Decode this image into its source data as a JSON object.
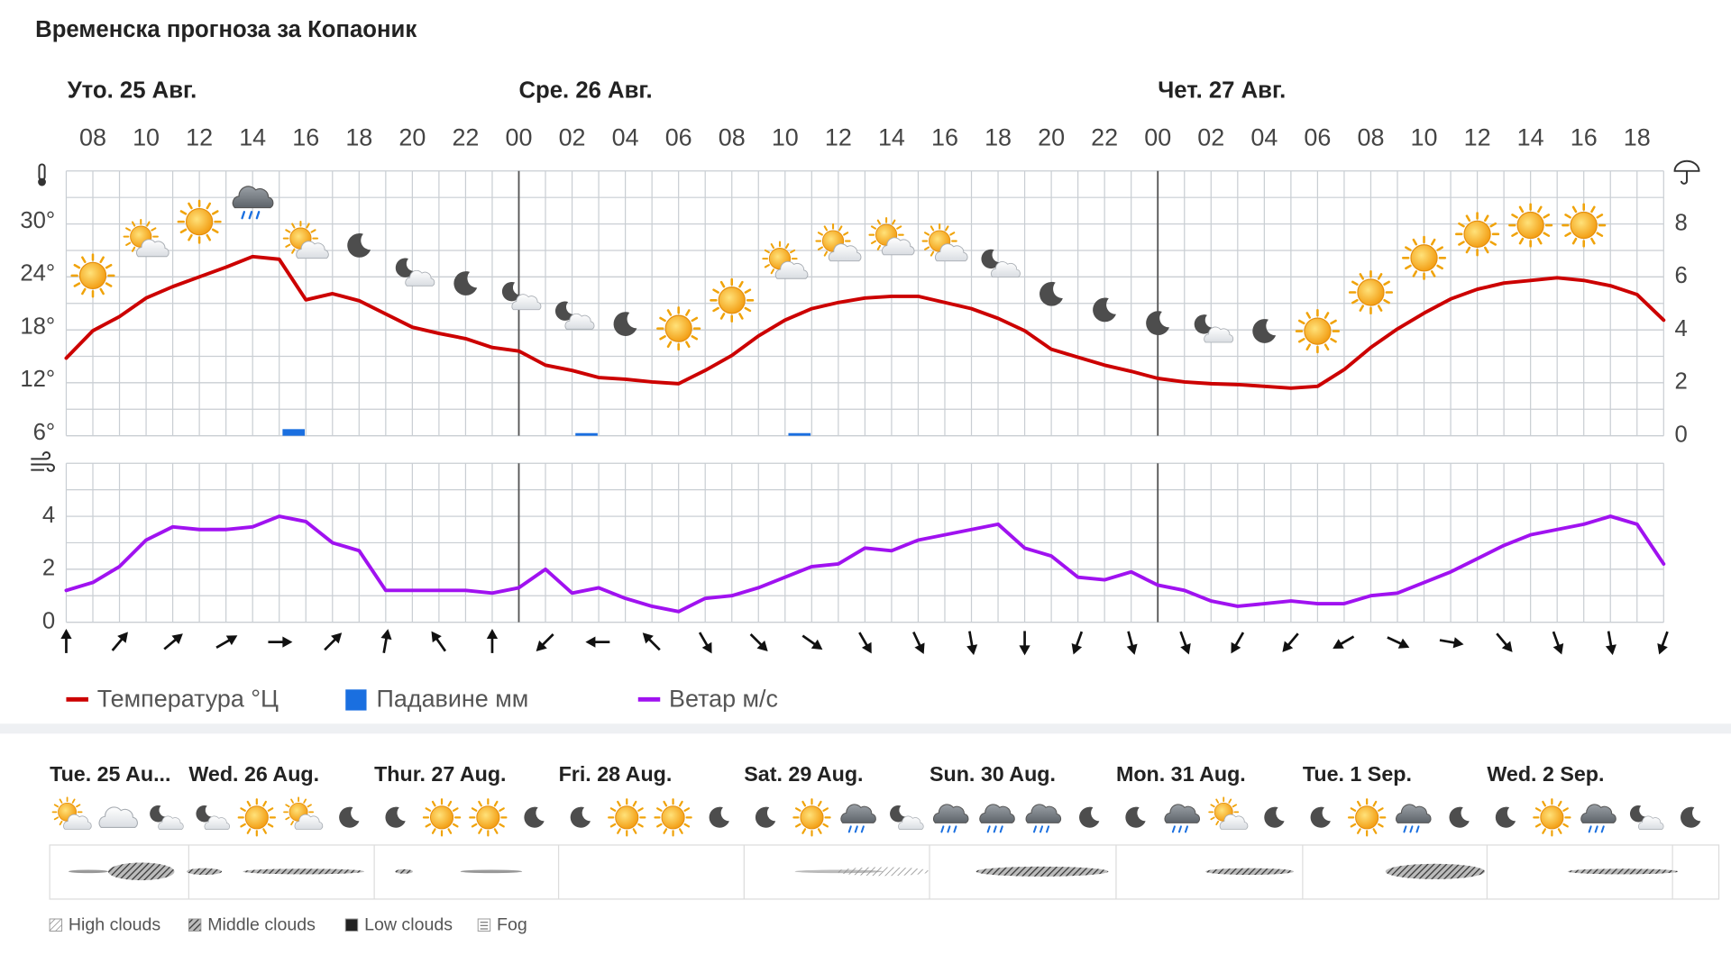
{
  "title": "Временска прогноза за Копаоник",
  "chart_data": [
    {
      "type": "line",
      "days": [
        "Уто. 25 Авг.",
        "Сре. 26 Авг.",
        "Чет. 27 Авг."
      ],
      "categories": [
        null,
        "08",
        null,
        "10",
        null,
        "12",
        null,
        "14",
        null,
        "16",
        null,
        "18",
        null,
        "20",
        null,
        "22",
        null,
        "00",
        null,
        "02",
        null,
        "04",
        null,
        "06",
        null,
        "08",
        null,
        "10",
        null,
        "12",
        null,
        "14",
        null,
        "16",
        null,
        "18",
        null,
        "20",
        null,
        "22",
        null,
        "00",
        null,
        "02",
        null,
        "04",
        null,
        "06",
        null,
        "08",
        null,
        "10",
        null,
        "12",
        null,
        "14",
        null,
        "16",
        null,
        "18",
        null
      ],
      "series": [
        {
          "name": "Температура °Ц",
          "type": "line",
          "color": "#cc0000",
          "values": [
            14.8,
            17.9,
            19.5,
            21.6,
            22.9,
            24,
            25.1,
            26.3,
            26,
            21.4,
            22.1,
            21.3,
            19.8,
            18.3,
            17.6,
            17,
            16,
            15.6,
            14,
            13.4,
            12.6,
            12.4,
            12.1,
            11.9,
            13.4,
            15.1,
            17.3,
            19.1,
            20.4,
            21.1,
            21.6,
            21.8,
            21.8,
            21.1,
            20.4,
            19.3,
            17.9,
            15.8,
            14.9,
            14,
            13.3,
            12.5,
            12.1,
            11.9,
            11.8,
            11.6,
            11.4,
            11.6,
            13.5,
            16,
            18.1,
            19.9,
            21.5,
            22.6,
            23.3,
            23.6,
            23.9,
            23.6,
            23,
            22,
            19.1
          ]
        },
        {
          "name": "Падавине мм",
          "type": "bar",
          "axis": "y2",
          "color": "#1a6fe0",
          "values": [
            0,
            0,
            0,
            0,
            0,
            0,
            0,
            0,
            0.25,
            0,
            0,
            0,
            0,
            0,
            0,
            0,
            0,
            0,
            0,
            0.1,
            0,
            0,
            0,
            0,
            0,
            0,
            0,
            0.1,
            0,
            0,
            0,
            0,
            0,
            0,
            0,
            0,
            0,
            0,
            0,
            0,
            0,
            0,
            0,
            0,
            0,
            0,
            0,
            0,
            0,
            0,
            0,
            0,
            0,
            0,
            0,
            0,
            0,
            0,
            0,
            0,
            0
          ]
        }
      ],
      "symbols": [
        null,
        "sun",
        null,
        "sun-cloud",
        null,
        "sun",
        null,
        "rain",
        null,
        "sun-cloud",
        null,
        "moon",
        null,
        "moon-cloud",
        null,
        "moon",
        null,
        "moon-cloud",
        null,
        "moon-cloud",
        null,
        "moon",
        null,
        "sun",
        null,
        "sun",
        null,
        "sun-cloud",
        null,
        "sun-cloud",
        null,
        "sun-cloud",
        null,
        "sun-cloud",
        null,
        "moon-cloud",
        null,
        "moon",
        null,
        "moon",
        null,
        "moon",
        null,
        "moon-cloud",
        null,
        "moon",
        null,
        "sun",
        null,
        "sun",
        null,
        "sun",
        null,
        "sun",
        null,
        "sun",
        null,
        "sun",
        null,
        null,
        null
      ],
      "ylim": [
        6,
        36
      ],
      "yticks": [
        {
          "value": 6,
          "label": "6°"
        },
        {
          "value": 12,
          "label": "12°"
        },
        {
          "value": 18,
          "label": "18°"
        },
        {
          "value": 24,
          "label": "24°"
        },
        {
          "value": 30,
          "label": "30°"
        }
      ],
      "y2lim": [
        0,
        10
      ],
      "y2ticks": [
        0,
        2,
        4,
        6,
        8
      ],
      "grid": true
    },
    {
      "type": "line",
      "series": [
        {
          "name": "Ветар м/с",
          "type": "line",
          "color": "#a012f0",
          "values": [
            1.2,
            1.5,
            2.1,
            3.1,
            3.6,
            3.5,
            3.5,
            3.6,
            4,
            3.8,
            3,
            2.7,
            1.2,
            1.2,
            1.2,
            1.2,
            1.1,
            1.3,
            2,
            1.1,
            1.3,
            0.9,
            0.6,
            0.4,
            0.9,
            1,
            1.3,
            1.7,
            2.1,
            2.2,
            2.8,
            2.7,
            3.1,
            3.3,
            3.5,
            3.7,
            2.8,
            2.5,
            1.7,
            1.6,
            1.9,
            1.4,
            1.2,
            0.8,
            0.6,
            0.7,
            0.8,
            0.7,
            0.7,
            1,
            1.1,
            1.5,
            1.9,
            2.4,
            2.9,
            3.3,
            3.5,
            3.7,
            4,
            3.7,
            2.2
          ]
        }
      ],
      "wind_direction": [
        0,
        null,
        40,
        null,
        50,
        null,
        60,
        null,
        90,
        null,
        45,
        null,
        10,
        null,
        -35,
        null,
        0,
        null,
        225,
        null,
        270,
        null,
        315,
        null,
        150,
        null,
        135,
        null,
        125,
        null,
        150,
        null,
        155,
        null,
        170,
        null,
        180,
        null,
        200,
        null,
        165,
        null,
        160,
        null,
        210,
        null,
        220,
        null,
        240,
        null,
        115,
        null,
        100,
        null,
        140,
        null,
        160,
        null,
        170,
        null,
        200
      ],
      "ylim": [
        0,
        6
      ],
      "yticks": [
        0,
        2,
        4
      ],
      "grid": true
    }
  ],
  "forecast": {
    "days": [
      "Tue. 25 Au...",
      "Wed. 26 Aug.",
      "Thur. 27 Aug.",
      "Fri. 28 Aug.",
      "Sat. 29 Aug.",
      "Sun. 30 Aug.",
      "Mon. 31 Aug.",
      "Tue. 1 Sep.",
      "Wed. 2 Sep."
    ],
    "symbols": [
      "sun-cloud",
      "cloud",
      "moon-cloud",
      "moon-cloud",
      "sun",
      "sun-cloud",
      "moon",
      "moon",
      "sun",
      "sun",
      "moon",
      "moon",
      "sun",
      "sun",
      "moon",
      "moon",
      "sun",
      "rain",
      "moon-cloud",
      "rain",
      "rain",
      "rain",
      "moon",
      "moon",
      "rain",
      "sun-cloud",
      "moon",
      "moon",
      "sun",
      "rain",
      "moon",
      "moon",
      "sun",
      "rain",
      "moon-cloud",
      "moon"
    ],
    "cloud_legend": [
      "High clouds",
      "Middle clouds",
      "Low clouds",
      "Fog"
    ]
  }
}
